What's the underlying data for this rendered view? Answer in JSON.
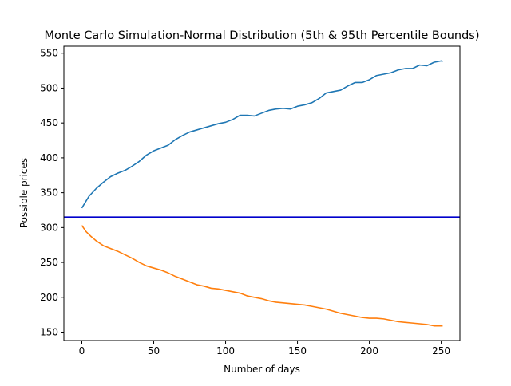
{
  "chart_data": {
    "type": "line",
    "title": "Monte Carlo Simulation-Normal Distribution (5th & 95th Percentile Bounds)",
    "xlabel": "Number of days",
    "ylabel": "Possible prices",
    "xlim": [
      -12.5,
      263
    ],
    "ylim": [
      138,
      560
    ],
    "xticks": [
      0,
      50,
      100,
      150,
      200,
      250
    ],
    "yticks": [
      150,
      200,
      250,
      300,
      350,
      400,
      450,
      500,
      550
    ],
    "grid": false,
    "legend": "none",
    "hline": {
      "y": 315,
      "color": "#0000cc"
    },
    "series": [
      {
        "color": "#1f77b4",
        "points": [
          [
            0,
            328
          ],
          [
            5,
            345
          ],
          [
            10,
            356
          ],
          [
            15,
            365
          ],
          [
            20,
            373
          ],
          [
            25,
            378
          ],
          [
            30,
            382
          ],
          [
            35,
            388
          ],
          [
            40,
            395
          ],
          [
            45,
            404
          ],
          [
            50,
            410
          ],
          [
            55,
            414
          ],
          [
            60,
            418
          ],
          [
            65,
            426
          ],
          [
            70,
            432
          ],
          [
            75,
            437
          ],
          [
            80,
            440
          ],
          [
            85,
            443
          ],
          [
            90,
            446
          ],
          [
            95,
            449
          ],
          [
            100,
            451
          ],
          [
            105,
            455
          ],
          [
            110,
            461
          ],
          [
            115,
            461
          ],
          [
            120,
            460
          ],
          [
            125,
            464
          ],
          [
            130,
            468
          ],
          [
            135,
            470
          ],
          [
            140,
            471
          ],
          [
            145,
            470
          ],
          [
            150,
            474
          ],
          [
            155,
            476
          ],
          [
            160,
            479
          ],
          [
            165,
            485
          ],
          [
            170,
            493
          ],
          [
            175,
            495
          ],
          [
            180,
            497
          ],
          [
            185,
            503
          ],
          [
            190,
            508
          ],
          [
            195,
            508
          ],
          [
            200,
            512
          ],
          [
            205,
            518
          ],
          [
            210,
            520
          ],
          [
            215,
            522
          ],
          [
            220,
            526
          ],
          [
            225,
            528
          ],
          [
            230,
            528
          ],
          [
            235,
            533
          ],
          [
            240,
            532
          ],
          [
            245,
            537
          ],
          [
            250,
            539
          ],
          [
            251,
            538
          ]
        ]
      },
      {
        "color": "#ff7f0e",
        "points": [
          [
            0,
            303
          ],
          [
            3,
            294
          ],
          [
            6,
            288
          ],
          [
            10,
            281
          ],
          [
            15,
            274
          ],
          [
            20,
            270
          ],
          [
            25,
            266
          ],
          [
            30,
            261
          ],
          [
            35,
            256
          ],
          [
            40,
            250
          ],
          [
            45,
            245
          ],
          [
            50,
            242
          ],
          [
            55,
            239
          ],
          [
            60,
            235
          ],
          [
            65,
            230
          ],
          [
            70,
            226
          ],
          [
            75,
            222
          ],
          [
            80,
            218
          ],
          [
            85,
            216
          ],
          [
            90,
            213
          ],
          [
            95,
            212
          ],
          [
            100,
            210
          ],
          [
            105,
            208
          ],
          [
            110,
            206
          ],
          [
            115,
            202
          ],
          [
            120,
            200
          ],
          [
            125,
            198
          ],
          [
            130,
            195
          ],
          [
            135,
            193
          ],
          [
            140,
            192
          ],
          [
            145,
            191
          ],
          [
            150,
            190
          ],
          [
            155,
            189
          ],
          [
            160,
            187
          ],
          [
            165,
            185
          ],
          [
            170,
            183
          ],
          [
            175,
            180
          ],
          [
            180,
            177
          ],
          [
            185,
            175
          ],
          [
            190,
            173
          ],
          [
            195,
            171
          ],
          [
            200,
            170
          ],
          [
            205,
            170
          ],
          [
            210,
            169
          ],
          [
            215,
            167
          ],
          [
            220,
            165
          ],
          [
            225,
            164
          ],
          [
            230,
            163
          ],
          [
            235,
            162
          ],
          [
            240,
            161
          ],
          [
            245,
            159
          ],
          [
            250,
            159
          ],
          [
            251,
            159
          ]
        ]
      }
    ]
  }
}
